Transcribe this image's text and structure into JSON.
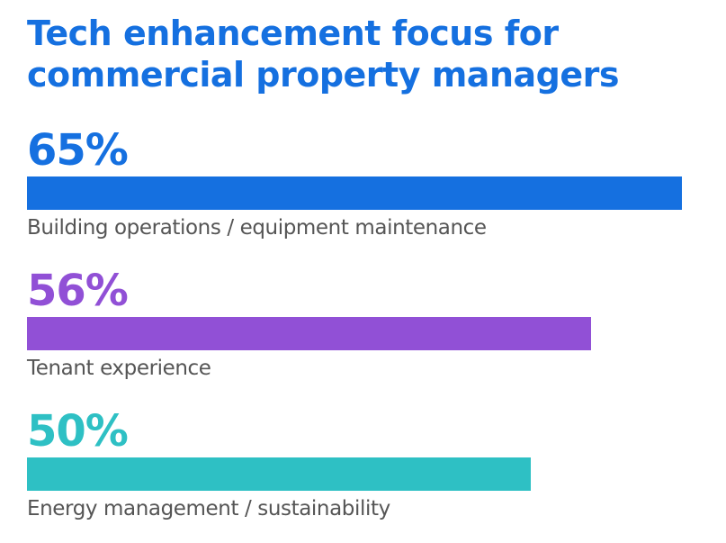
{
  "header": {
    "title_line1": "Tech enhancement focus for",
    "title_line2": "commercial property managers"
  },
  "colors": {
    "title": "#1570e0",
    "label_text": "#555555"
  },
  "chart_data": {
    "type": "bar",
    "orientation": "horizontal",
    "title": "Tech enhancement focus for commercial property managers",
    "categories": [
      "Building operations / equipment maintenance",
      "Tenant experience",
      "Energy management / sustainability"
    ],
    "values": [
      65,
      56,
      50
    ],
    "data_labels": [
      "65%",
      "56%",
      "50%"
    ],
    "colors": [
      "#1570e0",
      "#9150d6",
      "#2ec0c4"
    ],
    "unit": "%",
    "xlim": [
      0,
      65
    ],
    "grid": false,
    "legend": "none"
  }
}
